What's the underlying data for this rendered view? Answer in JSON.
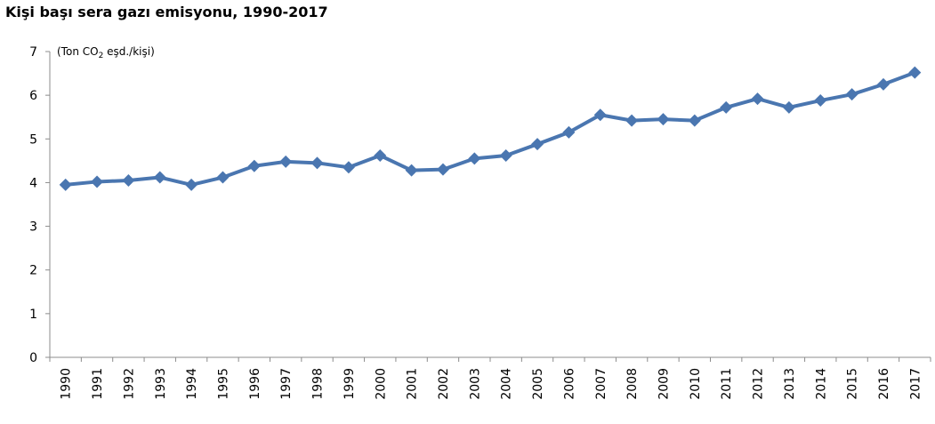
{
  "chart_data": {
    "type": "line",
    "title": "Kişi başı sera gazı emisyonu, 1990-2017",
    "unit_label": {
      "prefix": "(Ton CO",
      "subscript": "2",
      "suffix": " eşd./kişi)"
    },
    "categories": [
      "1990",
      "1991",
      "1992",
      "1993",
      "1994",
      "1995",
      "1996",
      "1997",
      "1998",
      "1999",
      "2000",
      "2001",
      "2002",
      "2003",
      "2004",
      "2005",
      "2006",
      "2007",
      "2008",
      "2009",
      "2010",
      "2011",
      "2012",
      "2013",
      "2014",
      "2015",
      "2016",
      "2017"
    ],
    "series": [
      {
        "values": [
          3.95,
          4.02,
          4.05,
          4.12,
          3.95,
          4.12,
          4.38,
          4.48,
          4.45,
          4.35,
          4.62,
          4.28,
          4.3,
          4.55,
          4.62,
          4.88,
          5.15,
          5.55,
          5.42,
          5.45,
          5.42,
          5.72,
          5.92,
          5.72,
          5.88,
          6.02,
          6.25,
          6.52
        ],
        "color": "#4a76b0"
      }
    ],
    "yticks": [
      "0",
      "1",
      "2",
      "3",
      "4",
      "5",
      "6",
      "7"
    ],
    "ylim": [
      0,
      7
    ],
    "grid": false,
    "marker": "diamond"
  }
}
